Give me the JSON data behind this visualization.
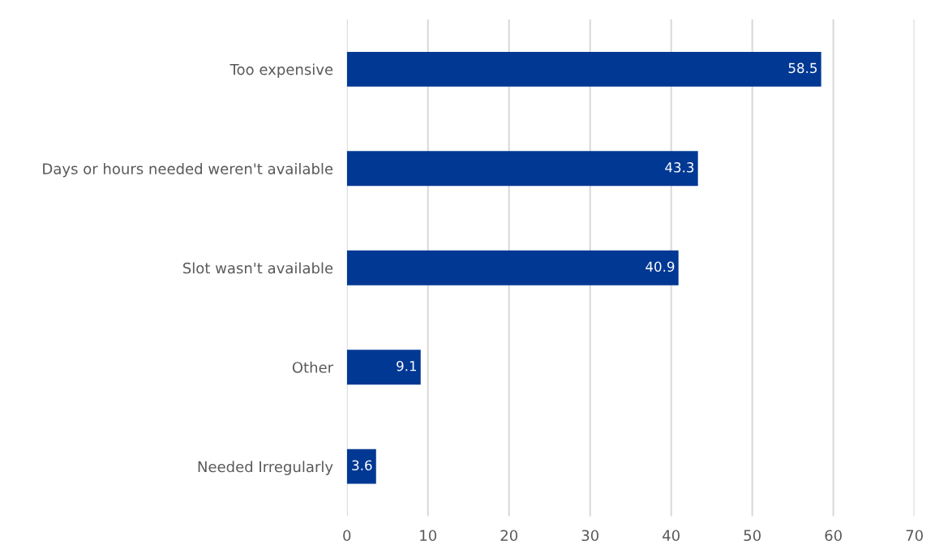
{
  "chart_data": {
    "type": "bar",
    "orientation": "horizontal",
    "categories": [
      "Too expensive",
      "Days or hours needed weren't available",
      "Slot wasn't available",
      "Other",
      "Needed Irregularly"
    ],
    "values": [
      58.5,
      43.3,
      40.9,
      9.1,
      3.6
    ],
    "color": "#003893",
    "data_labels": true,
    "xlim": [
      0,
      70
    ],
    "xticks": [
      0,
      10,
      20,
      30,
      40,
      50,
      60,
      70
    ],
    "grid": "x",
    "legend": false
  }
}
